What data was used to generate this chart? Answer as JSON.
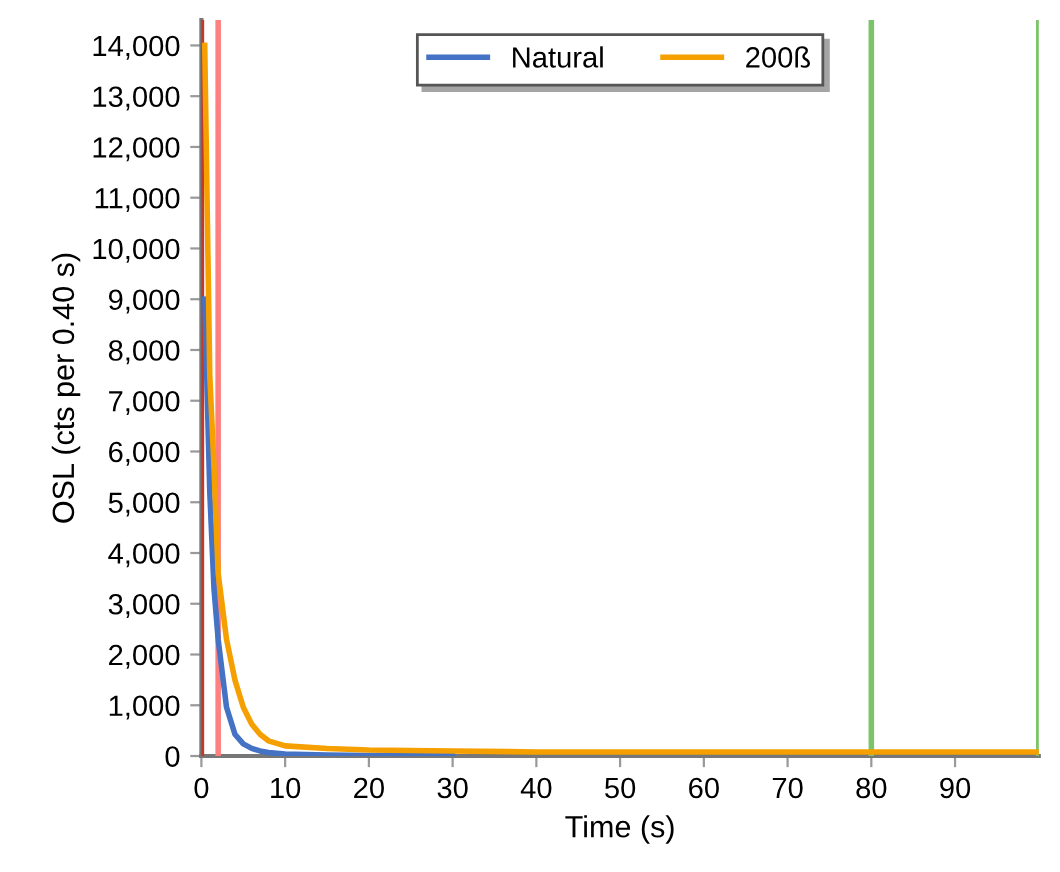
{
  "chart_data": {
    "type": "line",
    "xlabel": "Time (s)",
    "ylabel": "OSL (cts per 0.40 s)",
    "xlim": [
      0,
      100
    ],
    "xticks": [
      0,
      10,
      20,
      30,
      40,
      50,
      60,
      70,
      80,
      90
    ],
    "ylim": [
      0,
      14500
    ],
    "yticks": [
      0,
      {
        "value": 1000,
        "label": "1,000"
      },
      {
        "value": 2000,
        "label": "2,000"
      },
      {
        "value": 3000,
        "label": "3,000"
      },
      {
        "value": 4000,
        "label": "4,000"
      },
      {
        "value": 5000,
        "label": "5,000"
      },
      {
        "value": 6000,
        "label": "6,000"
      },
      {
        "value": 7000,
        "label": "7,000"
      },
      {
        "value": 8000,
        "label": "8,000"
      },
      {
        "value": 9000,
        "label": "9,000"
      },
      {
        "value": 10000,
        "label": "10,000"
      },
      {
        "value": 11000,
        "label": "11,000"
      },
      {
        "value": 12000,
        "label": "12,000"
      },
      {
        "value": 13000,
        "label": "13,000"
      },
      {
        "value": 14000,
        "label": "14,000"
      }
    ],
    "x": [
      0.4,
      1,
      1.5,
      2,
      3,
      4,
      5,
      6,
      7,
      8,
      10,
      15,
      20,
      30,
      40,
      50,
      60,
      70,
      80,
      90,
      100
    ],
    "series": [
      {
        "name": "Natural",
        "color": "#4472c4",
        "values": [
          9000,
          5200,
          3300,
          2300,
          960,
          430,
          240,
          150,
          100,
          70,
          40,
          20,
          10,
          10,
          null,
          null,
          null,
          null,
          null,
          null,
          null
        ]
      },
      {
        "name": "200ß",
        "color": "#f5a000",
        "values": [
          14000,
          7500,
          5700,
          3600,
          2300,
          1500,
          960,
          630,
          430,
          300,
          200,
          150,
          120,
          100,
          80,
          80,
          80,
          80,
          80,
          80,
          80
        ]
      }
    ],
    "ref_lines": [
      {
        "axis": "x",
        "value": 0,
        "color": "#c0392b"
      },
      {
        "axis": "x",
        "value": 2,
        "color": "#ff8080"
      },
      {
        "axis": "x",
        "value": 80,
        "color": "#7cc46a"
      },
      {
        "axis": "x",
        "value": 100,
        "color": "#7cc46a"
      }
    ],
    "legend": "top",
    "grid": false
  }
}
